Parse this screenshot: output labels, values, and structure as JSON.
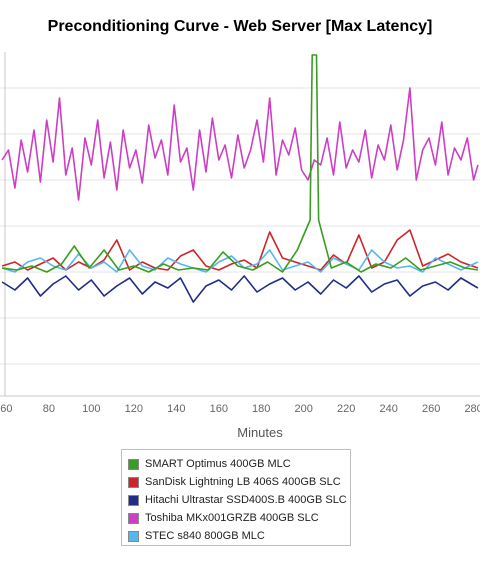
{
  "chart_data": {
    "type": "line",
    "title": "Preconditioning Curve - Web Server [Max Latency]",
    "xlabel": "Minutes",
    "ylabel": "",
    "xlim": [
      57,
      283
    ],
    "x_ticks": [
      60,
      80,
      100,
      120,
      140,
      160,
      180,
      200,
      220,
      240,
      260,
      280
    ],
    "grid": true,
    "legend_position": "bottom-center",
    "series": [
      {
        "name": "SMART Optimus 400GB MLC",
        "color": "#3a9d23",
        "x": [
          58,
          65,
          72,
          79,
          86,
          92,
          99,
          106,
          113,
          120,
          127,
          134,
          141,
          148,
          155,
          162,
          169,
          176,
          183,
          190,
          197,
          203,
          204,
          205,
          206,
          207,
          213,
          220,
          227,
          234,
          241,
          248,
          255,
          262,
          269,
          276,
          282
        ],
        "y": [
          268,
          270,
          266,
          272,
          264,
          246,
          268,
          250,
          270,
          266,
          272,
          264,
          270,
          268,
          270,
          252,
          266,
          270,
          262,
          272,
          250,
          220,
          55,
          55,
          55,
          220,
          268,
          262,
          272,
          264,
          268,
          258,
          270,
          266,
          262,
          268,
          270
        ]
      },
      {
        "name": "SanDisk Lightning LB 406S 400GB SLC",
        "color": "#cc2529",
        "x": [
          58,
          64,
          70,
          76,
          82,
          88,
          94,
          100,
          106,
          112,
          118,
          124,
          130,
          136,
          142,
          148,
          154,
          160,
          166,
          172,
          178,
          184,
          190,
          196,
          202,
          208,
          214,
          220,
          226,
          232,
          238,
          244,
          250,
          256,
          262,
          268,
          274,
          282
        ],
        "y": [
          266,
          262,
          270,
          264,
          258,
          270,
          262,
          268,
          260,
          240,
          270,
          262,
          268,
          270,
          256,
          250,
          266,
          270,
          264,
          260,
          268,
          232,
          258,
          262,
          266,
          270,
          255,
          264,
          235,
          268,
          262,
          240,
          230,
          266,
          260,
          254,
          262,
          268
        ]
      },
      {
        "name": "Hitachi Ultrastar SSD400S.B 400GB SLC",
        "color": "#1f2d8a",
        "x": [
          58,
          64,
          70,
          76,
          82,
          88,
          94,
          100,
          106,
          112,
          118,
          124,
          130,
          136,
          142,
          148,
          154,
          160,
          166,
          172,
          178,
          184,
          190,
          196,
          202,
          208,
          214,
          220,
          226,
          232,
          238,
          244,
          250,
          256,
          262,
          268,
          274,
          282
        ],
        "y": [
          282,
          290,
          278,
          296,
          284,
          276,
          290,
          280,
          296,
          286,
          278,
          294,
          282,
          288,
          278,
          302,
          286,
          280,
          290,
          276,
          292,
          284,
          278,
          290,
          282,
          294,
          280,
          288,
          276,
          292,
          284,
          280,
          296,
          286,
          282,
          290,
          278,
          288
        ]
      },
      {
        "name": "Toshiba MKx001GRZB 400GB SLC",
        "color": "#cc3fc4",
        "x": [
          58,
          61,
          64,
          67,
          70,
          73,
          76,
          79,
          82,
          85,
          88,
          91,
          94,
          97,
          100,
          103,
          106,
          109,
          112,
          115,
          118,
          121,
          124,
          127,
          130,
          133,
          136,
          139,
          142,
          145,
          148,
          151,
          154,
          157,
          160,
          163,
          166,
          169,
          172,
          175,
          178,
          181,
          184,
          187,
          190,
          193,
          196,
          199,
          202,
          205,
          208,
          211,
          214,
          217,
          220,
          223,
          226,
          229,
          232,
          235,
          238,
          241,
          244,
          247,
          250,
          253,
          256,
          259,
          262,
          265,
          268,
          271,
          274,
          277,
          280,
          282
        ],
        "y": [
          160,
          150,
          188,
          140,
          172,
          130,
          182,
          120,
          162,
          98,
          175,
          148,
          200,
          138,
          165,
          120,
          178,
          142,
          190,
          130,
          168,
          150,
          183,
          125,
          158,
          140,
          175,
          105,
          162,
          148,
          190,
          130,
          172,
          118,
          160,
          145,
          178,
          135,
          168,
          150,
          120,
          162,
          98,
          175,
          140,
          155,
          128,
          170,
          180,
          160,
          165,
          138,
          175,
          122,
          168,
          150,
          162,
          130,
          178,
          145,
          160,
          125,
          170,
          140,
          88,
          180,
          150,
          138,
          165,
          122,
          175,
          148,
          160,
          138,
          180,
          165
        ]
      },
      {
        "name": "STEC s840 800GB MLC",
        "color": "#54b8ee",
        "x": [
          58,
          64,
          70,
          76,
          82,
          88,
          94,
          100,
          106,
          112,
          118,
          124,
          130,
          136,
          142,
          148,
          154,
          160,
          166,
          172,
          178,
          184,
          190,
          196,
          202,
          208,
          214,
          220,
          226,
          232,
          238,
          244,
          250,
          256,
          262,
          268,
          274,
          282
        ],
        "y": [
          268,
          272,
          262,
          258,
          266,
          270,
          254,
          268,
          262,
          272,
          250,
          266,
          270,
          258,
          264,
          268,
          272,
          262,
          256,
          268,
          264,
          250,
          270,
          266,
          262,
          272,
          258,
          264,
          270,
          250,
          262,
          268,
          266,
          272,
          258,
          264,
          270,
          262
        ]
      }
    ]
  },
  "legend": {
    "items": [
      {
        "label": "SMART Optimus 400GB MLC",
        "color": "#3a9d23"
      },
      {
        "label": "SanDisk Lightning LB 406S 400GB SLC",
        "color": "#cc2529"
      },
      {
        "label": "Hitachi Ultrastar SSD400S.B 400GB SLC",
        "color": "#1f2d8a"
      },
      {
        "label": "Toshiba MKx001GRZB 400GB SLC",
        "color": "#cc3fc4"
      },
      {
        "label": "STEC s840 800GB MLC",
        "color": "#54b8ee"
      }
    ]
  }
}
